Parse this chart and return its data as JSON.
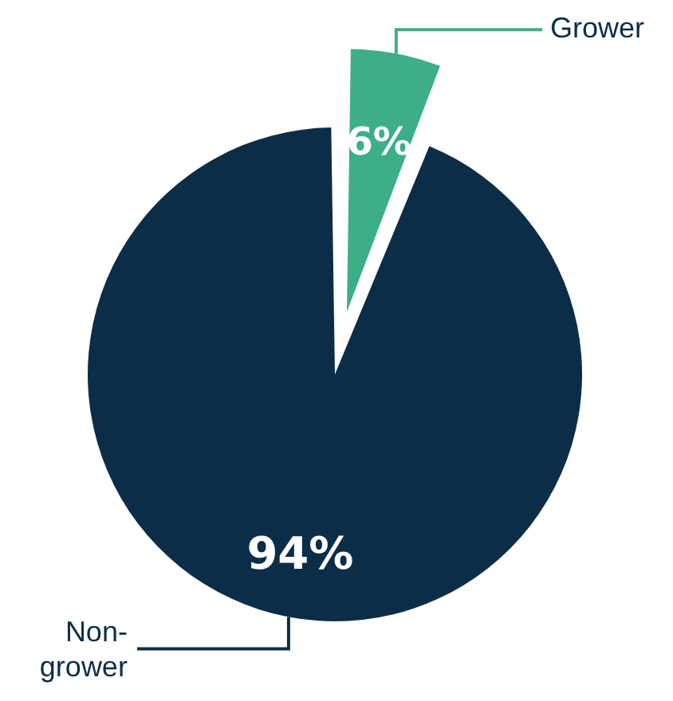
{
  "chart_data": {
    "type": "pie",
    "categories": [
      "Grower",
      "Non-grower"
    ],
    "values": [
      6,
      94
    ],
    "colors": [
      "#3dae8a",
      "#0b2d48"
    ],
    "value_labels": [
      "6%",
      "94%"
    ]
  }
}
